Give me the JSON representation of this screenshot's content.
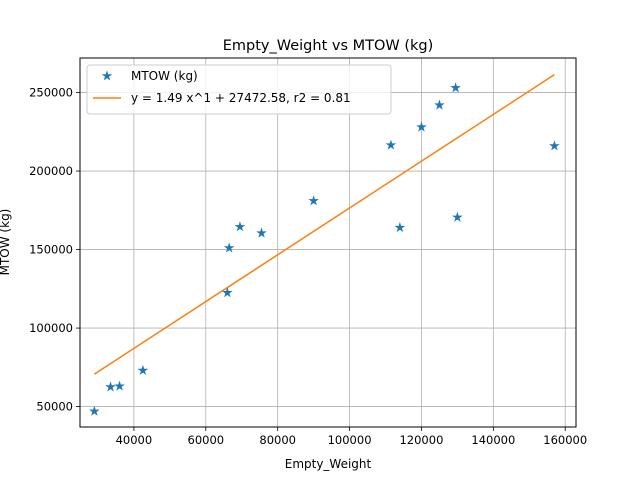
{
  "chart_data": {
    "type": "scatter",
    "title": "Empty_Weight vs MTOW (kg)",
    "xlabel": "Empty_Weight",
    "ylabel": "MTOW (kg)",
    "xlim": [
      25000,
      163000
    ],
    "ylim": [
      37000,
      272000
    ],
    "xticks": [
      40000,
      60000,
      80000,
      100000,
      120000,
      140000,
      160000
    ],
    "xtick_labels": [
      "40000",
      "60000",
      "80000",
      "100000",
      "120000",
      "140000",
      "160000"
    ],
    "yticks": [
      50000,
      100000,
      150000,
      200000,
      250000
    ],
    "ytick_labels": [
      "50000",
      "100000",
      "150000",
      "200000",
      "250000"
    ],
    "grid": true,
    "legend_position": "top-left",
    "series": [
      {
        "name": "MTOW (kg)",
        "kind": "scatter",
        "marker": "star",
        "color": "#1f77b4",
        "x": [
          29000,
          33500,
          36000,
          42500,
          66000,
          66500,
          69500,
          75500,
          90000,
          111500,
          114000,
          120000,
          125000,
          129500,
          130000,
          157000
        ],
        "y": [
          47000,
          62500,
          63000,
          73000,
          122500,
          151000,
          164500,
          160500,
          181000,
          216500,
          164000,
          228000,
          242000,
          253000,
          170500,
          216000
        ]
      },
      {
        "name": "y = 1.49 x^1 + 27472.58, r2 = 0.81",
        "kind": "line",
        "color": "#ff7f0e",
        "x": [
          29000,
          157000
        ],
        "y": [
          70682.58,
          261402.58
        ]
      }
    ]
  }
}
